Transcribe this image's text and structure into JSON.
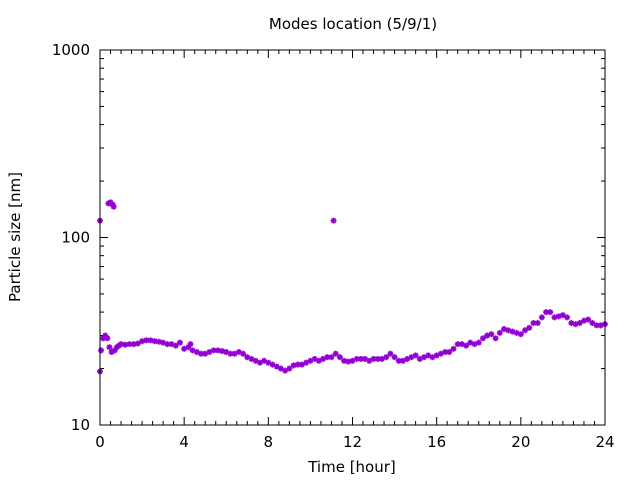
{
  "chart_data": {
    "type": "scatter",
    "title": "Modes location (5/9/1)",
    "xlabel": "Time [hour]",
    "ylabel": "Particle size [nm]",
    "xlim": [
      0,
      24
    ],
    "ylim": [
      10,
      1000
    ],
    "yscale": "log",
    "xticks": [
      0,
      4,
      8,
      12,
      16,
      20,
      24
    ],
    "yticks": [
      10,
      100,
      1000
    ],
    "xtick_labels": [
      "0",
      "4",
      "8",
      "12",
      "16",
      "20",
      "24"
    ],
    "ytick_labels": [
      "10",
      "100",
      "1000"
    ],
    "grid": false,
    "marker_color": "#9400d3",
    "series": [
      {
        "values": [
          [
            0.0,
            19.3
          ],
          [
            0.0,
            123
          ],
          [
            0.05,
            25
          ],
          [
            0.15,
            29
          ],
          [
            0.25,
            30
          ],
          [
            0.35,
            29
          ],
          [
            0.4,
            152
          ],
          [
            0.45,
            26
          ],
          [
            0.5,
            154
          ],
          [
            0.55,
            24.5
          ],
          [
            0.6,
            150
          ],
          [
            0.65,
            146
          ],
          [
            0.7,
            25
          ],
          [
            0.8,
            26
          ],
          [
            0.9,
            26.5
          ],
          [
            1.0,
            27
          ],
          [
            1.2,
            26.8
          ],
          [
            1.4,
            27
          ],
          [
            1.6,
            27
          ],
          [
            1.8,
            27.2
          ],
          [
            2.0,
            28
          ],
          [
            2.2,
            28.3
          ],
          [
            2.4,
            28.3
          ],
          [
            2.6,
            28
          ],
          [
            2.8,
            27.8
          ],
          [
            3.0,
            27.5
          ],
          [
            3.2,
            27
          ],
          [
            3.4,
            27
          ],
          [
            3.6,
            26.5
          ],
          [
            3.8,
            27.5
          ],
          [
            4.0,
            25.5
          ],
          [
            4.2,
            26
          ],
          [
            4.3,
            27
          ],
          [
            4.4,
            25
          ],
          [
            4.6,
            24.5
          ],
          [
            4.8,
            24
          ],
          [
            5.0,
            24
          ],
          [
            5.2,
            24.5
          ],
          [
            5.4,
            25
          ],
          [
            5.6,
            25
          ],
          [
            5.8,
            24.8
          ],
          [
            6.0,
            24.5
          ],
          [
            6.2,
            24
          ],
          [
            6.4,
            24
          ],
          [
            6.6,
            24.5
          ],
          [
            6.8,
            24
          ],
          [
            7.0,
            23
          ],
          [
            7.2,
            22.5
          ],
          [
            7.4,
            22
          ],
          [
            7.6,
            21.5
          ],
          [
            7.8,
            22
          ],
          [
            8.0,
            21.5
          ],
          [
            8.2,
            21
          ],
          [
            8.4,
            20.5
          ],
          [
            8.6,
            20
          ],
          [
            8.8,
            19.5
          ],
          [
            9.0,
            20
          ],
          [
            9.2,
            20.8
          ],
          [
            9.4,
            21
          ],
          [
            9.6,
            21
          ],
          [
            9.8,
            21.5
          ],
          [
            10.0,
            22
          ],
          [
            10.2,
            22.5
          ],
          [
            10.4,
            22
          ],
          [
            10.6,
            22.5
          ],
          [
            10.8,
            23
          ],
          [
            11.0,
            23
          ],
          [
            11.1,
            123
          ],
          [
            11.2,
            24
          ],
          [
            11.4,
            23
          ],
          [
            11.6,
            22
          ],
          [
            11.8,
            21.8
          ],
          [
            12.0,
            22
          ],
          [
            12.2,
            22.5
          ],
          [
            12.4,
            22.5
          ],
          [
            12.6,
            22.5
          ],
          [
            12.8,
            22
          ],
          [
            13.0,
            22.5
          ],
          [
            13.2,
            22.5
          ],
          [
            13.4,
            22.5
          ],
          [
            13.6,
            23
          ],
          [
            13.8,
            24
          ],
          [
            14.0,
            23
          ],
          [
            14.2,
            22
          ],
          [
            14.4,
            22
          ],
          [
            14.6,
            22.5
          ],
          [
            14.8,
            23
          ],
          [
            15.0,
            23.5
          ],
          [
            15.2,
            22.5
          ],
          [
            15.4,
            23
          ],
          [
            15.6,
            23.5
          ],
          [
            15.8,
            23
          ],
          [
            16.0,
            23.5
          ],
          [
            16.2,
            24
          ],
          [
            16.4,
            24.5
          ],
          [
            16.6,
            24.5
          ],
          [
            16.8,
            25.5
          ],
          [
            17.0,
            27
          ],
          [
            17.2,
            27
          ],
          [
            17.4,
            26.5
          ],
          [
            17.6,
            27.5
          ],
          [
            17.8,
            27
          ],
          [
            18.0,
            27.5
          ],
          [
            18.2,
            29
          ],
          [
            18.4,
            30
          ],
          [
            18.6,
            30.5
          ],
          [
            18.8,
            29
          ],
          [
            19.0,
            31
          ],
          [
            19.2,
            32.5
          ],
          [
            19.4,
            32
          ],
          [
            19.6,
            31.5
          ],
          [
            19.8,
            31
          ],
          [
            20.0,
            30.5
          ],
          [
            20.2,
            32
          ],
          [
            20.4,
            33
          ],
          [
            20.6,
            35
          ],
          [
            20.8,
            35
          ],
          [
            21.0,
            37.5
          ],
          [
            21.2,
            40
          ],
          [
            21.4,
            40
          ],
          [
            21.6,
            37.5
          ],
          [
            21.8,
            38
          ],
          [
            22.0,
            38.5
          ],
          [
            22.2,
            37.5
          ],
          [
            22.4,
            35
          ],
          [
            22.6,
            34.5
          ],
          [
            22.8,
            35
          ],
          [
            23.0,
            36
          ],
          [
            23.2,
            36.5
          ],
          [
            23.4,
            35
          ],
          [
            23.6,
            34
          ],
          [
            23.8,
            34
          ],
          [
            24.0,
            34.5
          ]
        ]
      }
    ]
  }
}
